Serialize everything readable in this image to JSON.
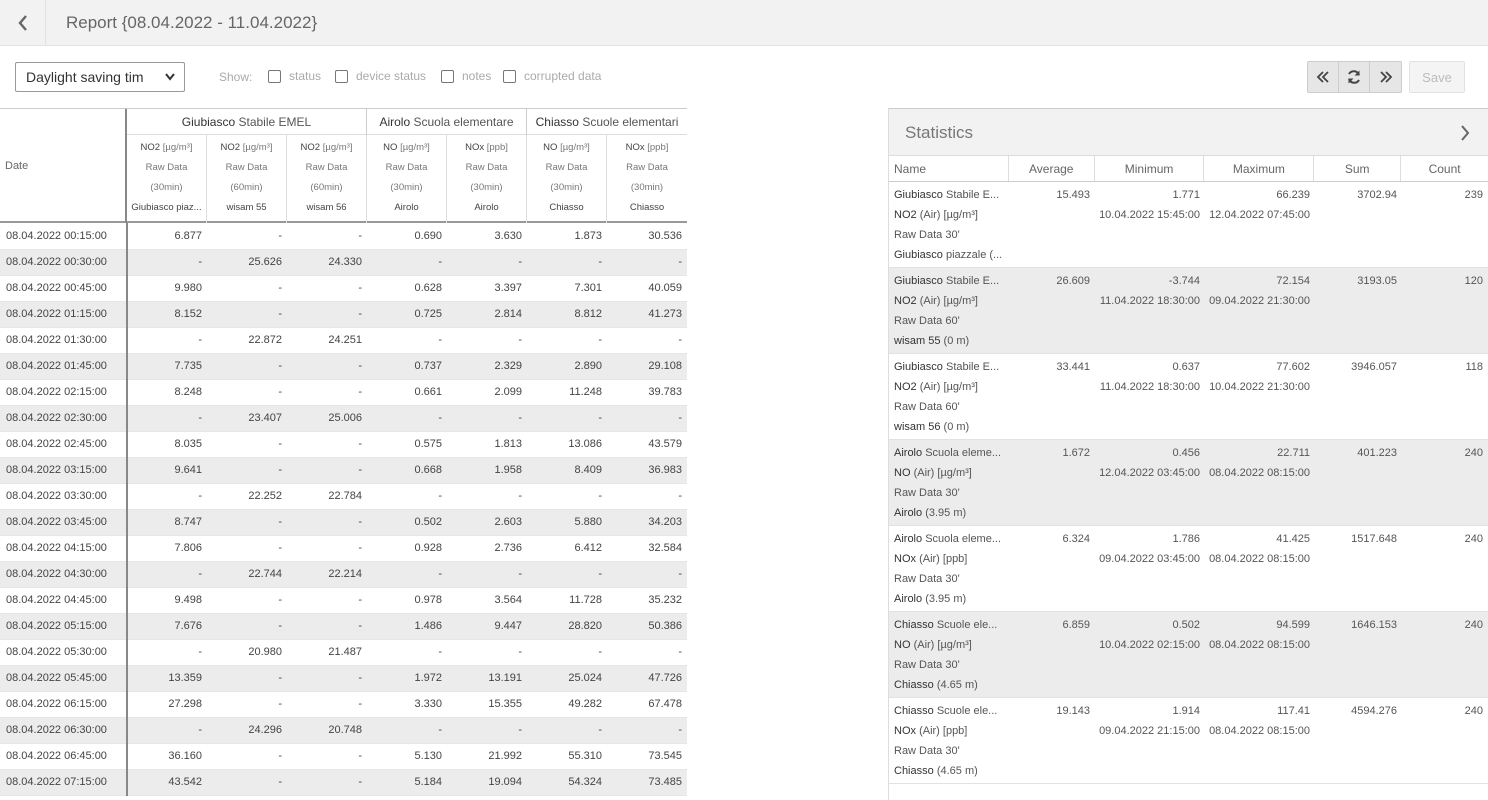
{
  "header": {
    "title": "Report {08.04.2022 - 11.04.2022}"
  },
  "toolbar": {
    "timezone": "Daylight saving tim",
    "show_label": "Show:",
    "checkboxes": [
      {
        "label": "status",
        "checked": false
      },
      {
        "label": "device status",
        "checked": false
      },
      {
        "label": "notes",
        "checked": false
      },
      {
        "label": "corrupted data",
        "checked": false
      }
    ],
    "save_label": "Save"
  },
  "grid": {
    "date_header": "Date",
    "groups": [
      {
        "station": "Giubiasco",
        "site": "Stabile EMEL"
      },
      {
        "station": "Airolo",
        "site": "Scuola elementare"
      },
      {
        "station": "Chiasso",
        "site": "Scuole elementari"
      }
    ],
    "columns": [
      {
        "param": "NO2",
        "unit": "[µg/m³]",
        "type": "Raw Data",
        "interval": "(30min)",
        "device": "Giubiasco piaz..."
      },
      {
        "param": "NO2",
        "unit": "[µg/m³]",
        "type": "Raw Data",
        "interval": "(60min)",
        "device": "wisam 55"
      },
      {
        "param": "NO2",
        "unit": "[µg/m³]",
        "type": "Raw Data",
        "interval": "(60min)",
        "device": "wisam 56"
      },
      {
        "param": "NO",
        "unit": "[µg/m³]",
        "type": "Raw Data",
        "interval": "(30min)",
        "device": "Airolo"
      },
      {
        "param": "NOx",
        "unit": "[ppb]",
        "type": "Raw Data",
        "interval": "(30min)",
        "device": "Airolo"
      },
      {
        "param": "NO",
        "unit": "[µg/m³]",
        "type": "Raw Data",
        "interval": "(30min)",
        "device": "Chiasso"
      },
      {
        "param": "NOx",
        "unit": "[ppb]",
        "type": "Raw Data",
        "interval": "(30min)",
        "device": "Chiasso"
      }
    ],
    "rows": [
      [
        "08.04.2022 00:15:00",
        "6.877",
        "-",
        "-",
        "0.690",
        "3.630",
        "1.873",
        "30.536"
      ],
      [
        "08.04.2022 00:30:00",
        "-",
        "25.626",
        "24.330",
        "-",
        "-",
        "-",
        "-"
      ],
      [
        "08.04.2022 00:45:00",
        "9.980",
        "-",
        "-",
        "0.628",
        "3.397",
        "7.301",
        "40.059"
      ],
      [
        "08.04.2022 01:15:00",
        "8.152",
        "-",
        "-",
        "0.725",
        "2.814",
        "8.812",
        "41.273"
      ],
      [
        "08.04.2022 01:30:00",
        "-",
        "22.872",
        "24.251",
        "-",
        "-",
        "-",
        "-"
      ],
      [
        "08.04.2022 01:45:00",
        "7.735",
        "-",
        "-",
        "0.737",
        "2.329",
        "2.890",
        "29.108"
      ],
      [
        "08.04.2022 02:15:00",
        "8.248",
        "-",
        "-",
        "0.661",
        "2.099",
        "11.248",
        "39.783"
      ],
      [
        "08.04.2022 02:30:00",
        "-",
        "23.407",
        "25.006",
        "-",
        "-",
        "-",
        "-"
      ],
      [
        "08.04.2022 02:45:00",
        "8.035",
        "-",
        "-",
        "0.575",
        "1.813",
        "13.086",
        "43.579"
      ],
      [
        "08.04.2022 03:15:00",
        "9.641",
        "-",
        "-",
        "0.668",
        "1.958",
        "8.409",
        "36.983"
      ],
      [
        "08.04.2022 03:30:00",
        "-",
        "22.252",
        "22.784",
        "-",
        "-",
        "-",
        "-"
      ],
      [
        "08.04.2022 03:45:00",
        "8.747",
        "-",
        "-",
        "0.502",
        "2.603",
        "5.880",
        "34.203"
      ],
      [
        "08.04.2022 04:15:00",
        "7.806",
        "-",
        "-",
        "0.928",
        "2.736",
        "6.412",
        "32.584"
      ],
      [
        "08.04.2022 04:30:00",
        "-",
        "22.744",
        "22.214",
        "-",
        "-",
        "-",
        "-"
      ],
      [
        "08.04.2022 04:45:00",
        "9.498",
        "-",
        "-",
        "0.978",
        "3.564",
        "11.728",
        "35.232"
      ],
      [
        "08.04.2022 05:15:00",
        "7.676",
        "-",
        "-",
        "1.486",
        "9.447",
        "28.820",
        "50.386"
      ],
      [
        "08.04.2022 05:30:00",
        "-",
        "20.980",
        "21.487",
        "-",
        "-",
        "-",
        "-"
      ],
      [
        "08.04.2022 05:45:00",
        "13.359",
        "-",
        "-",
        "1.972",
        "13.191",
        "25.024",
        "47.726"
      ],
      [
        "08.04.2022 06:15:00",
        "27.298",
        "-",
        "-",
        "3.330",
        "15.355",
        "49.282",
        "67.478"
      ],
      [
        "08.04.2022 06:30:00",
        "-",
        "24.296",
        "20.748",
        "-",
        "-",
        "-",
        "-"
      ],
      [
        "08.04.2022 06:45:00",
        "36.160",
        "-",
        "-",
        "5.130",
        "21.992",
        "55.310",
        "73.545"
      ],
      [
        "08.04.2022 07:15:00",
        "43.542",
        "-",
        "-",
        "5.184",
        "19.094",
        "54.324",
        "73.485"
      ]
    ]
  },
  "statistics": {
    "title": "Statistics",
    "columns": [
      "Name",
      "Average",
      "Minimum",
      "Maximum",
      "Sum",
      "Count"
    ],
    "rows": [
      {
        "station": "Giubiasco",
        "site": "Stabile E...",
        "param": "NO2",
        "param_rest": "(Air) [µg/m³]",
        "type": "Raw Data 30'",
        "device": "Giubiasco",
        "device_rest": "piazzale (...",
        "avg": "15.493",
        "min": "1.771",
        "min_date": "10.04.2022 15:45:00",
        "max": "66.239",
        "max_date": "12.04.2022 07:45:00",
        "sum": "3702.94",
        "count": "239"
      },
      {
        "station": "Giubiasco",
        "site": "Stabile E...",
        "param": "NO2",
        "param_rest": "(Air) [µg/m³]",
        "type": "Raw Data 60'",
        "device": "wisam 55",
        "device_rest": "(0 m)",
        "avg": "26.609",
        "min": "-3.744",
        "min_date": "11.04.2022 18:30:00",
        "max": "72.154",
        "max_date": "09.04.2022 21:30:00",
        "sum": "3193.05",
        "count": "120"
      },
      {
        "station": "Giubiasco",
        "site": "Stabile E...",
        "param": "NO2",
        "param_rest": "(Air) [µg/m³]",
        "type": "Raw Data 60'",
        "device": "wisam 56",
        "device_rest": "(0 m)",
        "avg": "33.441",
        "min": "0.637",
        "min_date": "11.04.2022 18:30:00",
        "max": "77.602",
        "max_date": "10.04.2022 21:30:00",
        "sum": "3946.057",
        "count": "118"
      },
      {
        "station": "Airolo",
        "site": "Scuola eleme...",
        "param": "NO",
        "param_rest": "(Air) [µg/m³]",
        "type": "Raw Data 30'",
        "device": "Airolo",
        "device_rest": "(3.95 m)",
        "avg": "1.672",
        "min": "0.456",
        "min_date": "12.04.2022 03:45:00",
        "max": "22.711",
        "max_date": "08.04.2022 08:15:00",
        "sum": "401.223",
        "count": "240"
      },
      {
        "station": "Airolo",
        "site": "Scuola eleme...",
        "param": "NOx",
        "param_rest": "(Air) [ppb]",
        "type": "Raw Data 30'",
        "device": "Airolo",
        "device_rest": "(3.95 m)",
        "avg": "6.324",
        "min": "1.786",
        "min_date": "09.04.2022 03:45:00",
        "max": "41.425",
        "max_date": "08.04.2022 08:15:00",
        "sum": "1517.648",
        "count": "240"
      },
      {
        "station": "Chiasso",
        "site": "Scuole ele...",
        "param": "NO",
        "param_rest": "(Air) [µg/m³]",
        "type": "Raw Data 30'",
        "device": "Chiasso",
        "device_rest": "(4.65 m)",
        "avg": "6.859",
        "min": "0.502",
        "min_date": "10.04.2022 02:15:00",
        "max": "94.599",
        "max_date": "08.04.2022 08:15:00",
        "sum": "1646.153",
        "count": "240"
      },
      {
        "station": "Chiasso",
        "site": "Scuole ele...",
        "param": "NOx",
        "param_rest": "(Air) [ppb]",
        "type": "Raw Data 30'",
        "device": "Chiasso",
        "device_rest": "(4.65 m)",
        "avg": "19.143",
        "min": "1.914",
        "min_date": "09.04.2022 21:15:00",
        "max": "117.41",
        "max_date": "08.04.2022 08:15:00",
        "sum": "4594.276",
        "count": "240"
      }
    ]
  }
}
